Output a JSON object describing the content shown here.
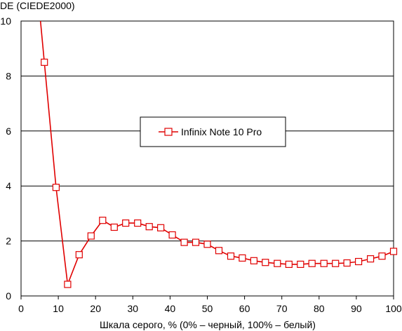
{
  "colors": {
    "series": "#e00000",
    "marker_fill": "#ffffff",
    "grid": "#000000",
    "axis": "#000000",
    "background": "#ffffff"
  },
  "chart_data": {
    "type": "line",
    "title": "",
    "xlabel": "Шкала серого, % (0% – черный, 100% – белый)",
    "ylabel": "DE (CIEDE2000)",
    "xlim": [
      0,
      100
    ],
    "ylim": [
      0,
      10
    ],
    "x_ticks": [
      0,
      10,
      20,
      30,
      40,
      50,
      60,
      70,
      80,
      90,
      100
    ],
    "y_ticks": [
      0,
      2,
      4,
      6,
      8,
      10
    ],
    "x_tick_labels": [
      "0",
      "10",
      "20",
      "30",
      "40",
      "50",
      "60",
      "70",
      "80",
      "90",
      "100"
    ],
    "y_tick_labels": [
      "0",
      "2",
      "4",
      "6",
      "8",
      "10"
    ],
    "grid": "horizontal",
    "legend_position": "center",
    "marker": "square",
    "series": [
      {
        "name": "Infinix Note 10 Pro",
        "x": [
          6.25,
          9.4,
          12.5,
          15.6,
          18.8,
          21.9,
          25.0,
          28.1,
          31.3,
          34.4,
          37.5,
          40.6,
          43.8,
          46.9,
          50.0,
          53.1,
          56.3,
          59.4,
          62.5,
          65.6,
          68.8,
          71.9,
          75.0,
          78.1,
          81.3,
          84.4,
          87.5,
          90.6,
          93.8,
          96.9,
          100.0
        ],
        "values": [
          8.5,
          3.95,
          0.42,
          1.5,
          2.18,
          2.75,
          2.5,
          2.65,
          2.65,
          2.52,
          2.48,
          2.22,
          1.95,
          1.95,
          1.88,
          1.65,
          1.45,
          1.38,
          1.28,
          1.22,
          1.18,
          1.15,
          1.15,
          1.18,
          1.18,
          1.18,
          1.2,
          1.25,
          1.35,
          1.45,
          1.62
        ]
      }
    ]
  }
}
